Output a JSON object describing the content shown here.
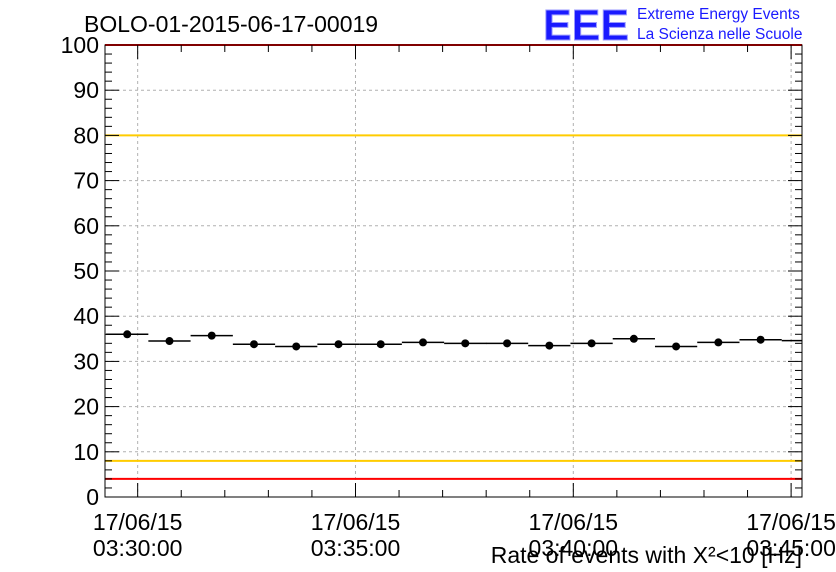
{
  "chart_data": {
    "type": "scatter",
    "title": "BOLO-01-2015-06-17-00019",
    "xlabel": "Rate of events with X²<10 [Hz]",
    "ylabel": "",
    "ylim": [
      0,
      100
    ],
    "yticks": [
      "0",
      "10",
      "20",
      "30",
      "40",
      "50",
      "60",
      "70",
      "80",
      "90",
      "100"
    ],
    "xlim_minutes": [
      -0.75,
      15.25
    ],
    "xticks": [
      {
        "minute": 0,
        "date": "17/06/15",
        "time": "03:30:00"
      },
      {
        "minute": 5,
        "date": "17/06/15",
        "time": "03:35:00"
      },
      {
        "minute": 10,
        "date": "17/06/15",
        "time": "03:40:00"
      },
      {
        "minute": 15,
        "date": "17/06/15",
        "time": "03:45:00"
      }
    ],
    "grid": true,
    "bin_width_minutes": 0.9697,
    "x_minutes": [
      -0.24,
      0.73,
      1.7,
      2.67,
      3.64,
      4.61,
      5.58,
      6.55,
      7.52,
      8.48,
      9.45,
      10.42,
      11.39,
      12.36,
      13.33,
      14.3,
      15.27
    ],
    "values": [
      36.0,
      34.5,
      35.7,
      33.8,
      33.3,
      33.8,
      33.8,
      34.2,
      34.0,
      34.0,
      33.5,
      34.0,
      35.0,
      33.3,
      34.2,
      34.8,
      34.6
    ],
    "reference_lines": [
      {
        "value": 100,
        "color": "#ff0000"
      },
      {
        "value": 80,
        "color": "#ffcc00"
      },
      {
        "value": 8,
        "color": "#ffcc00"
      },
      {
        "value": 4,
        "color": "#ff0000"
      }
    ],
    "marker_color": "#000000"
  },
  "logo": {
    "mark": "EEE",
    "line1": "Extreme Energy Events",
    "line2": "La Scienza nelle Scuole",
    "color": "#1a1aff"
  }
}
